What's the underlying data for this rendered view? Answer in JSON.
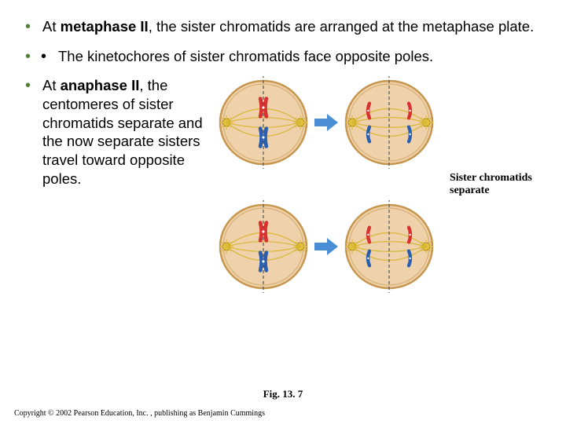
{
  "bullets": {
    "metaphase_pre": "At ",
    "metaphase_bold": "metaphase II",
    "metaphase_post": ", the sister chromatids are arranged at the metaphase plate.",
    "kinetochore": "The kinetochores of sister chromatids face opposite poles.",
    "anaphase_pre": "At ",
    "anaphase_bold": "anaphase II",
    "anaphase_post": ", the centomeres of sister chromatids separate and the now separate sisters travel toward opposite poles."
  },
  "diagram": {
    "caption": "Sister chromatids separate",
    "fig_label": "Fig. 13. 7",
    "colors": {
      "cell_fill": "#efd2ab",
      "cell_stroke": "#c7974f",
      "spindle": "#d6b531",
      "centrosome": "#e0c040",
      "chrom_red": "#d93030",
      "chrom_blue": "#2a5fb0",
      "dash": "#555555",
      "arrow": "#4a8fd6"
    },
    "cell_r": 55
  },
  "copyright": "Copyright © 2002 Pearson Education, Inc. , publishing as Benjamin Cummings"
}
